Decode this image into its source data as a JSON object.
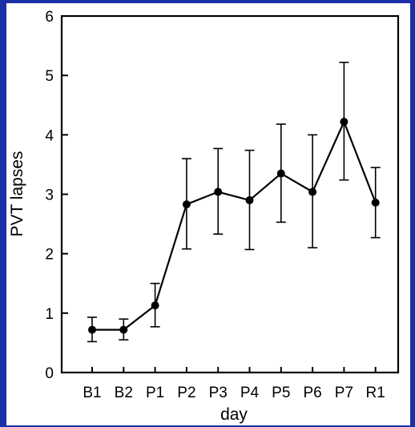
{
  "colors": {
    "frame": "#1a2fa8",
    "panel": "#ffffff",
    "ink": "#000000"
  },
  "chart_data": {
    "type": "line",
    "title": "",
    "xlabel": "day",
    "ylabel": "PVT lapses",
    "ylim": [
      0,
      6
    ],
    "yticks": [
      "0",
      "1",
      "2",
      "3",
      "4",
      "5",
      "6"
    ],
    "categories": [
      "B1",
      "B2",
      "P1",
      "P2",
      "P3",
      "P4",
      "P5",
      "P6",
      "P7",
      "R1"
    ],
    "series": [
      {
        "values": [
          0.72,
          0.72,
          1.13,
          2.83,
          3.04,
          2.9,
          3.35,
          3.04,
          4.22,
          2.86
        ],
        "error_low": [
          0.52,
          0.55,
          0.77,
          2.08,
          2.33,
          2.07,
          2.53,
          2.1,
          3.24,
          2.27
        ],
        "error_high": [
          0.93,
          0.9,
          1.5,
          3.6,
          3.77,
          3.74,
          4.18,
          4.0,
          5.22,
          3.45
        ]
      }
    ],
    "grid": false,
    "legend": "none"
  }
}
